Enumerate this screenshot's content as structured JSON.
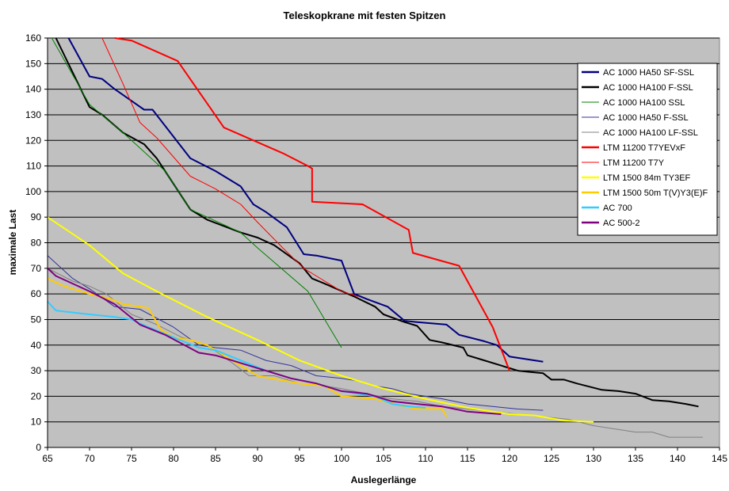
{
  "chart_data": {
    "type": "line",
    "title": "Teleskopkrane mit festen Spitzen",
    "xlabel": "Auslegerlänge",
    "ylabel": "maximale Last",
    "xlim": [
      65,
      145
    ],
    "ylim": [
      0,
      160
    ],
    "x_ticks": [
      "65",
      "70",
      "75",
      "80",
      "85",
      "90",
      "95",
      "100",
      "105",
      "110",
      "115",
      "120",
      "125",
      "130",
      "135",
      "140",
      "145"
    ],
    "y_ticks": [
      "0",
      "10",
      "20",
      "30",
      "40",
      "50",
      "60",
      "70",
      "80",
      "90",
      "100",
      "110",
      "120",
      "130",
      "140",
      "150",
      "160"
    ],
    "grid": "horizontal",
    "plot_background": "#c0c0c0",
    "legend_position": "right",
    "series": [
      {
        "name": "AC 1000 HA50 SF-SSL",
        "color": "#000080",
        "width": 2,
        "points": [
          [
            67.5,
            160
          ],
          [
            70,
            145
          ],
          [
            71.5,
            144
          ],
          [
            73,
            140
          ],
          [
            76.5,
            132
          ],
          [
            77.5,
            132
          ],
          [
            82,
            113
          ],
          [
            85,
            108
          ],
          [
            88,
            102
          ],
          [
            89.5,
            95
          ],
          [
            91,
            92
          ],
          [
            93.5,
            86
          ],
          [
            95.5,
            75.5
          ],
          [
            97,
            75
          ],
          [
            100,
            73
          ],
          [
            101.5,
            60
          ],
          [
            103,
            58
          ],
          [
            105.5,
            55
          ],
          [
            107.5,
            49.5
          ],
          [
            109,
            49
          ],
          [
            112.5,
            48
          ],
          [
            114,
            44
          ],
          [
            117,
            41.5
          ],
          [
            118.5,
            40
          ],
          [
            120,
            35.5
          ],
          [
            124,
            33.5
          ]
        ]
      },
      {
        "name": "AC 1000 HA100 F-SSL",
        "color": "#000000",
        "width": 2,
        "points": [
          [
            66,
            160
          ],
          [
            70,
            133
          ],
          [
            71.5,
            130
          ],
          [
            74,
            123
          ],
          [
            76.5,
            118.5
          ],
          [
            78,
            113
          ],
          [
            82,
            93
          ],
          [
            84,
            89
          ],
          [
            88,
            84
          ],
          [
            90,
            82
          ],
          [
            92,
            79
          ],
          [
            95,
            72
          ],
          [
            96.5,
            66
          ],
          [
            98,
            64
          ],
          [
            101.5,
            59
          ],
          [
            104,
            55
          ],
          [
            105,
            52
          ],
          [
            107.5,
            49
          ],
          [
            109,
            47.5
          ],
          [
            110.5,
            42
          ],
          [
            112,
            41
          ],
          [
            114.5,
            39
          ],
          [
            115,
            36
          ],
          [
            116.5,
            34.5
          ],
          [
            119,
            32
          ],
          [
            121,
            30
          ],
          [
            122.5,
            29.5
          ],
          [
            124,
            29
          ],
          [
            125,
            26.5
          ],
          [
            126.5,
            26.5
          ],
          [
            128,
            25
          ],
          [
            131,
            22.5
          ],
          [
            133,
            22
          ],
          [
            135,
            21
          ],
          [
            137,
            18.5
          ],
          [
            139,
            18
          ],
          [
            141,
            17
          ],
          [
            142.5,
            16
          ]
        ]
      },
      {
        "name": "AC 1000 HA100 SSL",
        "color": "#008000",
        "width": 1,
        "points": [
          [
            65.5,
            160
          ],
          [
            70,
            134
          ],
          [
            74,
            123
          ],
          [
            76,
            117
          ],
          [
            79,
            108
          ],
          [
            82,
            93
          ],
          [
            84,
            90
          ],
          [
            88,
            84
          ],
          [
            90,
            78
          ],
          [
            96,
            61
          ],
          [
            100,
            39
          ]
        ]
      },
      {
        "name": "AC 1000 HA50 F-SSL",
        "color": "#333399",
        "width": 1,
        "points": [
          [
            65,
            75
          ],
          [
            68,
            66
          ],
          [
            70,
            62
          ],
          [
            73,
            55
          ],
          [
            76,
            54
          ],
          [
            80,
            47
          ],
          [
            83,
            40
          ],
          [
            85,
            39
          ],
          [
            88,
            38
          ],
          [
            91,
            34
          ],
          [
            94,
            32
          ],
          [
            97,
            28
          ],
          [
            100,
            27
          ],
          [
            102,
            26
          ],
          [
            104,
            24
          ],
          [
            106,
            23
          ],
          [
            108,
            21
          ],
          [
            110,
            20
          ],
          [
            112,
            19
          ],
          [
            115,
            17
          ],
          [
            118,
            16
          ],
          [
            121,
            15
          ],
          [
            124,
            14.5
          ]
        ]
      },
      {
        "name": "AC 1000 HA100 LF-SSL",
        "color": "#808080",
        "width": 1,
        "points": [
          [
            65,
            70
          ],
          [
            68,
            65
          ],
          [
            70,
            63
          ],
          [
            72,
            60
          ],
          [
            75,
            52
          ],
          [
            78,
            48
          ],
          [
            81,
            43
          ],
          [
            84,
            40
          ],
          [
            87,
            33
          ],
          [
            89,
            28
          ],
          [
            92,
            28
          ],
          [
            95,
            25
          ],
          [
            98,
            24
          ],
          [
            100,
            23
          ],
          [
            103,
            21
          ],
          [
            106,
            19
          ],
          [
            109,
            18
          ],
          [
            112,
            16
          ],
          [
            115,
            15
          ],
          [
            118,
            14
          ],
          [
            121,
            13
          ],
          [
            124,
            12
          ],
          [
            127,
            11
          ],
          [
            130,
            8.5
          ],
          [
            133,
            7
          ],
          [
            135,
            6
          ],
          [
            137,
            6
          ],
          [
            139,
            4
          ],
          [
            143,
            4
          ]
        ]
      },
      {
        "name": "LTM 11200 T7YEVxF",
        "color": "#ff0000",
        "width": 2,
        "points": [
          [
            73,
            160
          ],
          [
            75,
            159
          ],
          [
            80.5,
            151
          ],
          [
            86,
            125
          ],
          [
            93,
            115
          ],
          [
            96,
            110
          ],
          [
            96.5,
            109
          ],
          [
            96.5,
            96
          ],
          [
            99.5,
            95.5
          ],
          [
            102.5,
            95
          ],
          [
            108,
            85
          ],
          [
            108.5,
            76
          ],
          [
            114,
            71
          ],
          [
            115,
            65
          ],
          [
            118,
            47
          ],
          [
            120,
            30
          ]
        ]
      },
      {
        "name": "LTM 11200 T7Y",
        "color": "#ff0000",
        "width": 1,
        "points": [
          [
            71.5,
            160
          ],
          [
            74,
            142
          ],
          [
            76,
            127
          ],
          [
            78,
            121
          ],
          [
            82,
            106
          ],
          [
            85,
            101
          ],
          [
            88,
            95
          ],
          [
            90,
            88
          ],
          [
            93,
            78
          ],
          [
            95.5,
            70
          ],
          [
            97,
            67
          ],
          [
            100,
            61
          ],
          [
            102,
            59
          ]
        ]
      },
      {
        "name": "LTM 1500 84m TY3EF",
        "color": "#ffff00",
        "width": 2,
        "points": [
          [
            65,
            90
          ],
          [
            70,
            79
          ],
          [
            74,
            68
          ],
          [
            78,
            61
          ],
          [
            84,
            51
          ],
          [
            90,
            42
          ],
          [
            95,
            34
          ],
          [
            100,
            28
          ],
          [
            105,
            23
          ],
          [
            110,
            19
          ],
          [
            115,
            15.5
          ],
          [
            120,
            13
          ],
          [
            123,
            12.5
          ],
          [
            126.5,
            10.5
          ],
          [
            130,
            10
          ]
        ]
      },
      {
        "name": "LTM 1500 50m T(V)Y3(E)F",
        "color": "#ffcc00",
        "width": 2,
        "points": [
          [
            65,
            66
          ],
          [
            67,
            63
          ],
          [
            70,
            60
          ],
          [
            72.5,
            58
          ],
          [
            74,
            56
          ],
          [
            77,
            54.5
          ],
          [
            78.5,
            46
          ],
          [
            80,
            43
          ],
          [
            82,
            42
          ],
          [
            84,
            40
          ],
          [
            86,
            36
          ],
          [
            88,
            32
          ],
          [
            90,
            28
          ],
          [
            95,
            25
          ],
          [
            98,
            24
          ],
          [
            100,
            20
          ],
          [
            104,
            19
          ],
          [
            107.5,
            16
          ],
          [
            109,
            15
          ],
          [
            112,
            15
          ],
          [
            112.5,
            12
          ]
        ]
      },
      {
        "name": "AC 700",
        "color": "#33ccff",
        "width": 2,
        "points": [
          [
            65,
            57
          ],
          [
            66,
            53.5
          ],
          [
            70,
            52
          ],
          [
            73,
            51
          ],
          [
            75,
            50
          ],
          [
            77,
            47
          ],
          [
            80,
            43
          ],
          [
            83,
            39
          ],
          [
            85,
            38
          ],
          [
            88,
            34
          ],
          [
            91,
            30
          ],
          [
            94,
            27
          ],
          [
            97,
            25
          ],
          [
            100,
            22
          ],
          [
            104,
            20
          ],
          [
            106,
            17
          ],
          [
            108,
            16
          ],
          [
            110,
            15.5
          ]
        ]
      },
      {
        "name": "AC 500-2",
        "color": "#800080",
        "width": 2,
        "points": [
          [
            65,
            70
          ],
          [
            66,
            67
          ],
          [
            70,
            61
          ],
          [
            73,
            56
          ],
          [
            76,
            48
          ],
          [
            79,
            44
          ],
          [
            83,
            37
          ],
          [
            85,
            36
          ],
          [
            88,
            33
          ],
          [
            91,
            30
          ],
          [
            94,
            27
          ],
          [
            97,
            25
          ],
          [
            100,
            22
          ],
          [
            103,
            21
          ],
          [
            106,
            18
          ],
          [
            109,
            17
          ],
          [
            112,
            16
          ],
          [
            115,
            14
          ],
          [
            119,
            13
          ]
        ]
      }
    ]
  }
}
